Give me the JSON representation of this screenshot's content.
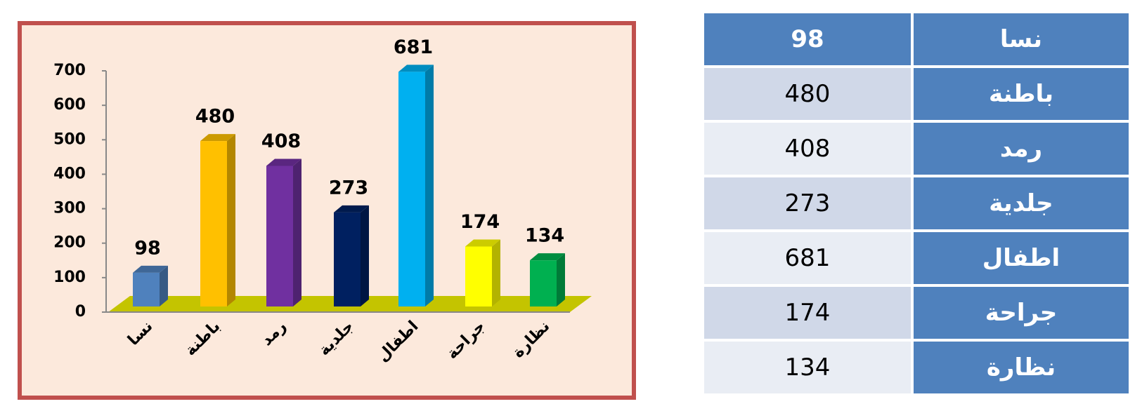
{
  "chart_data": {
    "type": "bar3d",
    "categories": [
      "نسا",
      "باطنة",
      "رمد",
      "جلدية",
      "اطفال",
      "جراحة",
      "نظارة"
    ],
    "values": [
      98,
      480,
      408,
      273,
      681,
      174,
      134
    ],
    "colors": [
      "#4f81bd",
      "#ffc000",
      "#7030a0",
      "#002060",
      "#00b0f0",
      "#ffff00",
      "#00b050"
    ],
    "ylim": [
      0,
      700
    ],
    "yticks": [
      0,
      100,
      200,
      300,
      400,
      500,
      600,
      700
    ]
  },
  "table": {
    "rows": [
      [
        "نسا",
        "98"
      ],
      [
        "باطنة",
        "480"
      ],
      [
        "رمد",
        "408"
      ],
      [
        "جلدية",
        "273"
      ],
      [
        "اطفال",
        "681"
      ],
      [
        "جراحة",
        "174"
      ],
      [
        "نظارة",
        "134"
      ]
    ]
  }
}
